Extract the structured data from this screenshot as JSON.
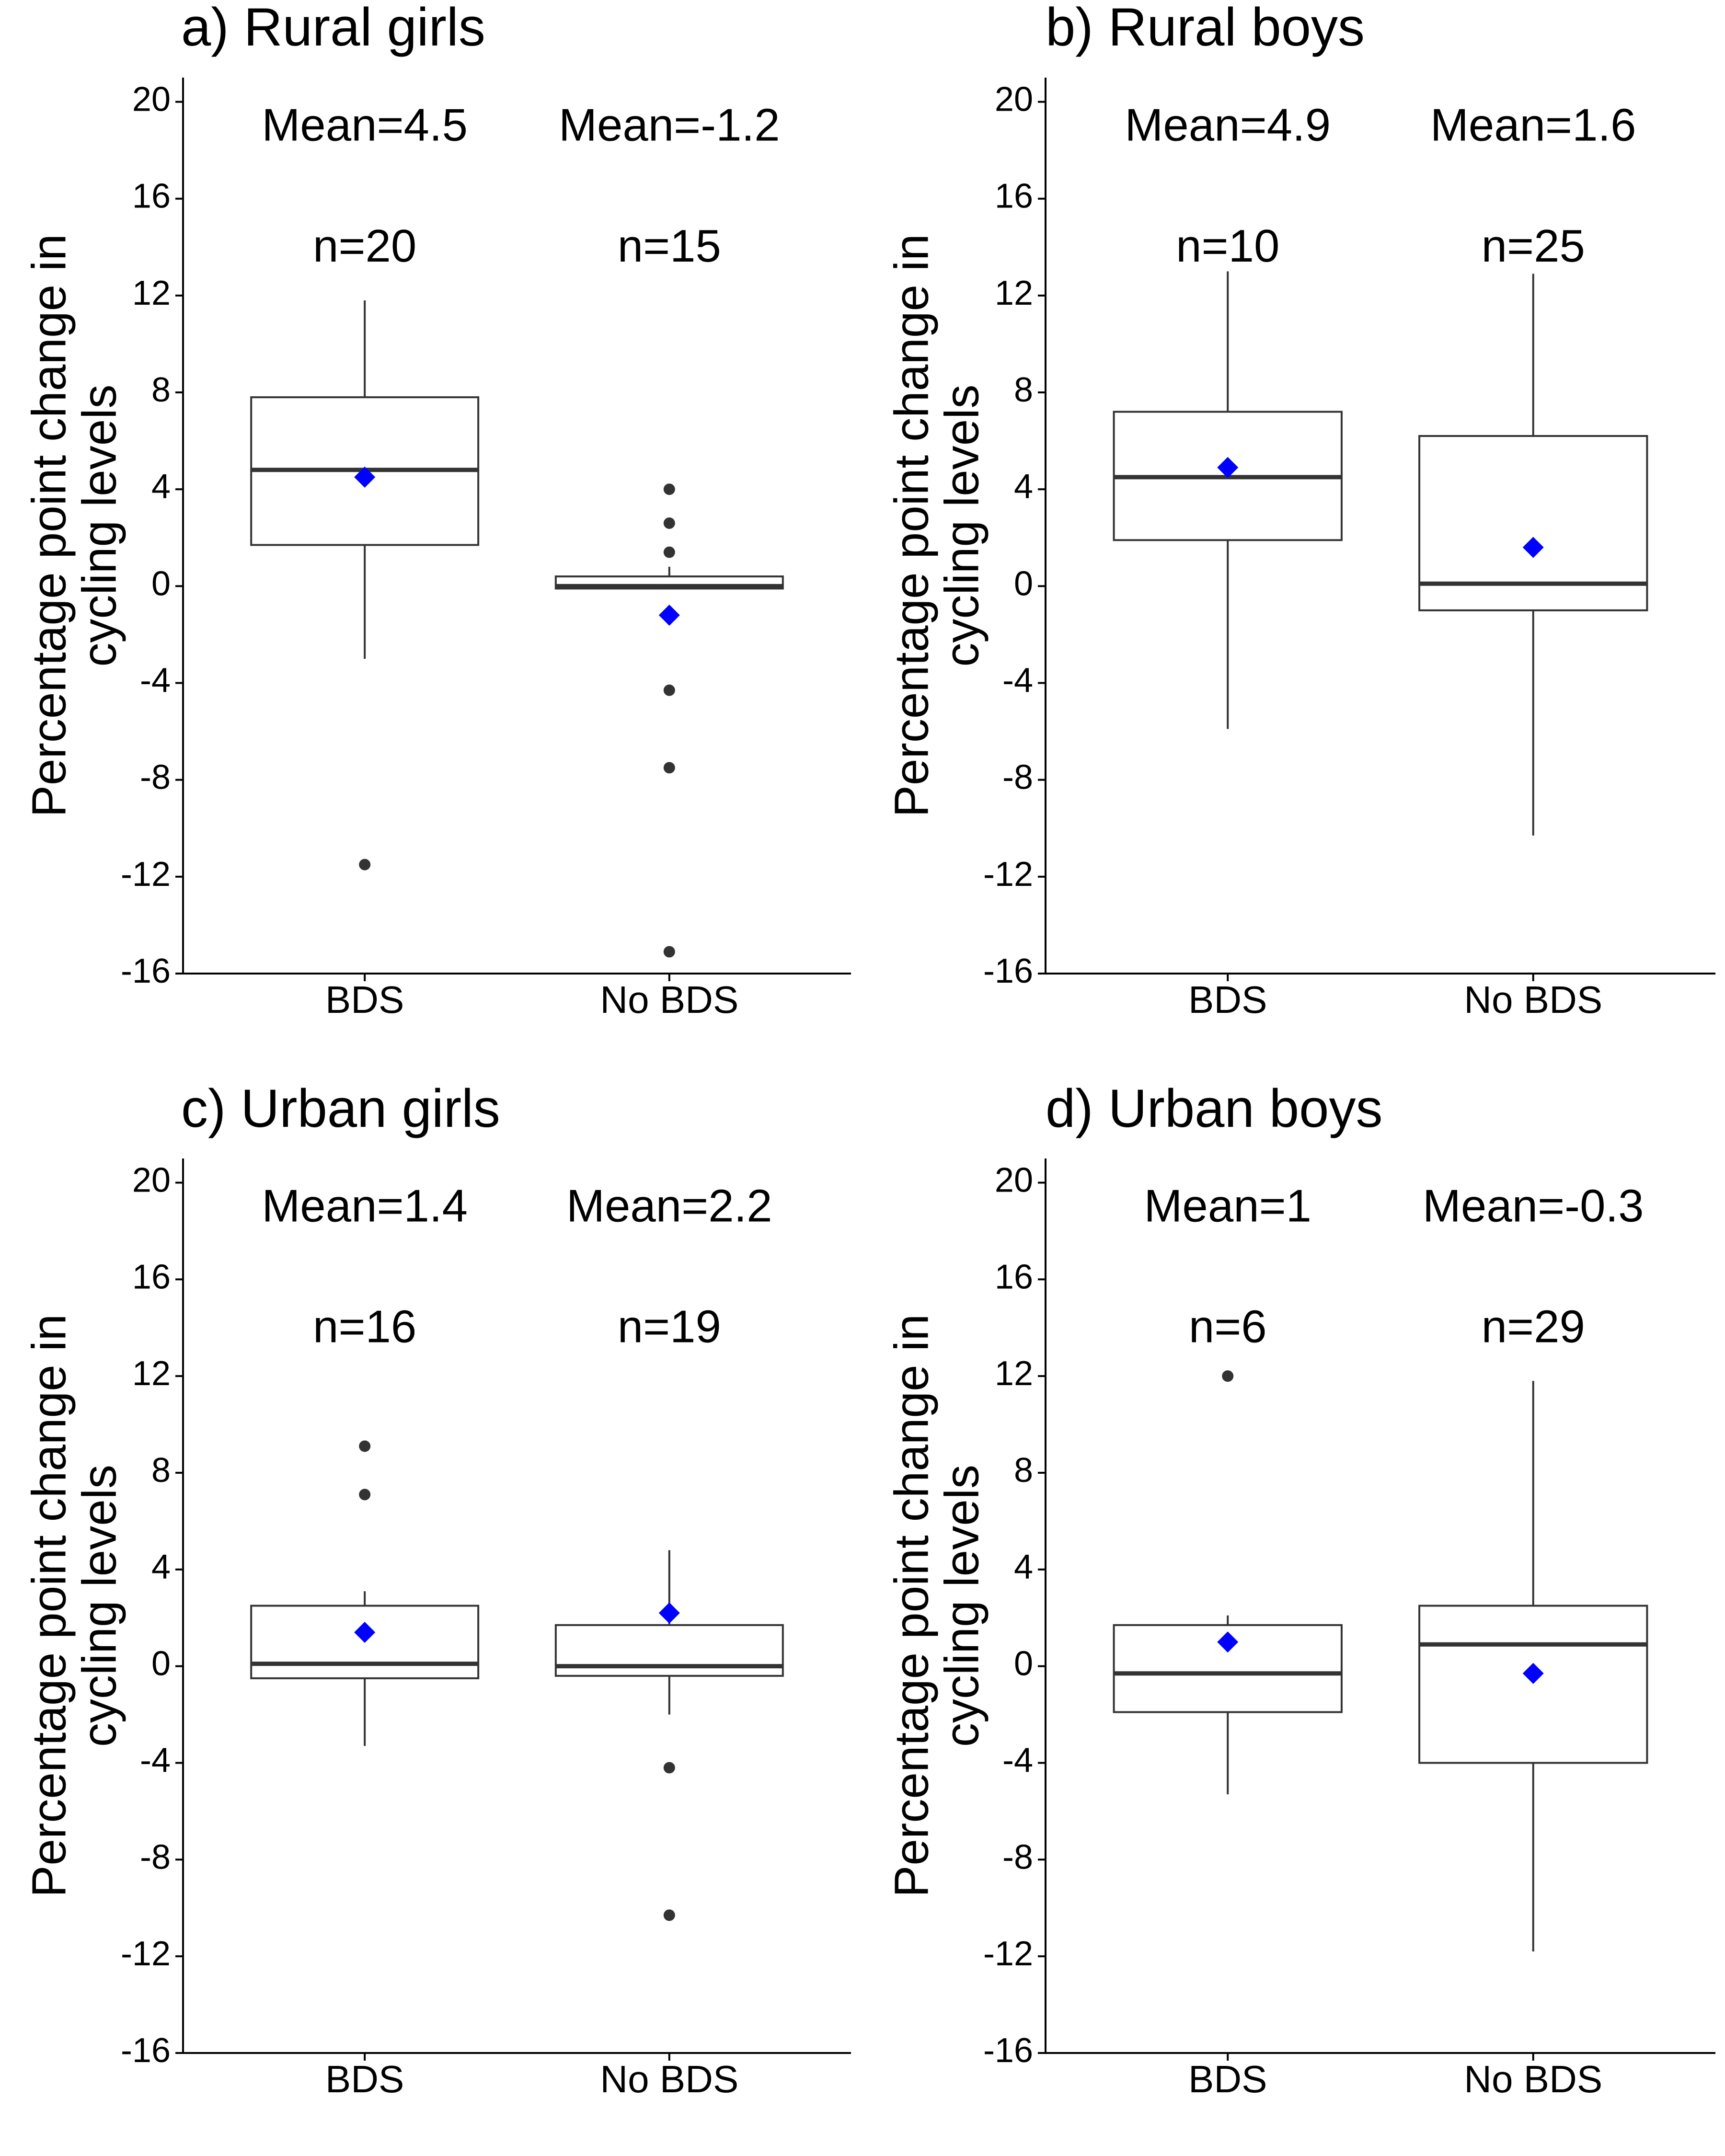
{
  "chart_data": [
    {
      "type": "boxplot",
      "title": "a) Rural girls",
      "ylabel_lines": [
        "Percentage point change in",
        "cycling levels"
      ],
      "ylim": [
        -16,
        21
      ],
      "yticks": [
        20,
        16,
        12,
        8,
        4,
        0,
        -4,
        -8,
        -12,
        -16
      ],
      "ytick_labels": [
        "20",
        "16",
        "12",
        "8",
        "4",
        "0",
        "-4",
        "-8",
        "-12",
        "-16"
      ],
      "categories": [
        "BDS",
        "No BDS"
      ],
      "groups": [
        {
          "category": "BDS",
          "mean_label": "Mean=4.5",
          "n_label": "n=20",
          "q1": 1.7,
          "median": 4.8,
          "q3": 7.8,
          "whisker_low": -3.0,
          "whisker_high": 11.8,
          "mean": 4.5,
          "outliers": [
            -11.5
          ]
        },
        {
          "category": "No BDS",
          "mean_label": "Mean=-1.2",
          "n_label": "n=15",
          "q1": -0.1,
          "median": 0.0,
          "q3": 0.4,
          "whisker_low": -0.1,
          "whisker_high": 0.8,
          "mean": -1.2,
          "outliers": [
            4.0,
            2.6,
            1.4,
            -4.3,
            -7.5,
            -15.1
          ]
        }
      ]
    },
    {
      "type": "boxplot",
      "title": "b) Rural boys",
      "ylabel_lines": [
        "Percentage point change in",
        "cycling levels"
      ],
      "ylim": [
        -16,
        21
      ],
      "yticks": [
        20,
        16,
        12,
        8,
        4,
        0,
        -4,
        -8,
        -12,
        -16
      ],
      "ytick_labels": [
        "20",
        "16",
        "12",
        "8",
        "4",
        "0",
        "-4",
        "-8",
        "-12",
        "-16"
      ],
      "categories": [
        "BDS",
        "No BDS"
      ],
      "groups": [
        {
          "category": "BDS",
          "mean_label": "Mean=4.9",
          "n_label": "n=10",
          "q1": 1.9,
          "median": 4.5,
          "q3": 7.2,
          "whisker_low": -5.9,
          "whisker_high": 13.0,
          "mean": 4.9,
          "outliers": []
        },
        {
          "category": "No BDS",
          "mean_label": "Mean=1.6",
          "n_label": "n=25",
          "q1": -1.0,
          "median": 0.1,
          "q3": 6.2,
          "whisker_low": -10.3,
          "whisker_high": 12.9,
          "mean": 1.6,
          "outliers": []
        }
      ]
    },
    {
      "type": "boxplot",
      "title": "c) Urban girls",
      "ylabel_lines": [
        "Percentage point change in",
        "cycling levels"
      ],
      "ylim": [
        -16,
        21
      ],
      "yticks": [
        20,
        16,
        12,
        8,
        4,
        0,
        -4,
        -8,
        -12,
        -16
      ],
      "ytick_labels": [
        "20",
        "16",
        "12",
        "8",
        "4",
        "0",
        "-4",
        "-8",
        "-12",
        "-16"
      ],
      "categories": [
        "BDS",
        "No BDS"
      ],
      "groups": [
        {
          "category": "BDS",
          "mean_label": "Mean=1.4",
          "n_label": "n=16",
          "q1": -0.5,
          "median": 0.1,
          "q3": 2.5,
          "whisker_low": -3.3,
          "whisker_high": 3.1,
          "mean": 1.4,
          "outliers": [
            9.1,
            7.1
          ]
        },
        {
          "category": "No BDS",
          "mean_label": "Mean=2.2",
          "n_label": "n=19",
          "q1": -0.4,
          "median": 0.0,
          "q3": 1.7,
          "whisker_low": -2.0,
          "whisker_high": 4.8,
          "mean": 2.2,
          "outliers": [
            -4.2,
            -10.3
          ]
        }
      ]
    },
    {
      "type": "boxplot",
      "title": "d) Urban boys",
      "ylabel_lines": [
        "Percentage point change in",
        "cycling levels"
      ],
      "ylim": [
        -16,
        21
      ],
      "yticks": [
        20,
        16,
        12,
        8,
        4,
        0,
        -4,
        -8,
        -12,
        -16
      ],
      "ytick_labels": [
        "20",
        "16",
        "12",
        "8",
        "4",
        "0",
        "-4",
        "-8",
        "-12",
        "-16"
      ],
      "categories": [
        "BDS",
        "No BDS"
      ],
      "groups": [
        {
          "category": "BDS",
          "mean_label": "Mean=1",
          "n_label": "n=6",
          "q1": -1.9,
          "median": -0.3,
          "q3": 1.7,
          "whisker_low": -5.3,
          "whisker_high": 2.1,
          "mean": 1.0,
          "outliers": [
            12.0
          ]
        },
        {
          "category": "No BDS",
          "mean_label": "Mean=-0.3",
          "n_label": "n=29",
          "q1": -4.0,
          "median": 0.9,
          "q3": 2.5,
          "whisker_low": -11.8,
          "whisker_high": 11.8,
          "mean": -0.3,
          "outliers": []
        }
      ]
    }
  ],
  "colors": {
    "box_line": "#333333",
    "mean_marker": "#0000ff",
    "outlier": "#333333",
    "axis": "#000000"
  }
}
